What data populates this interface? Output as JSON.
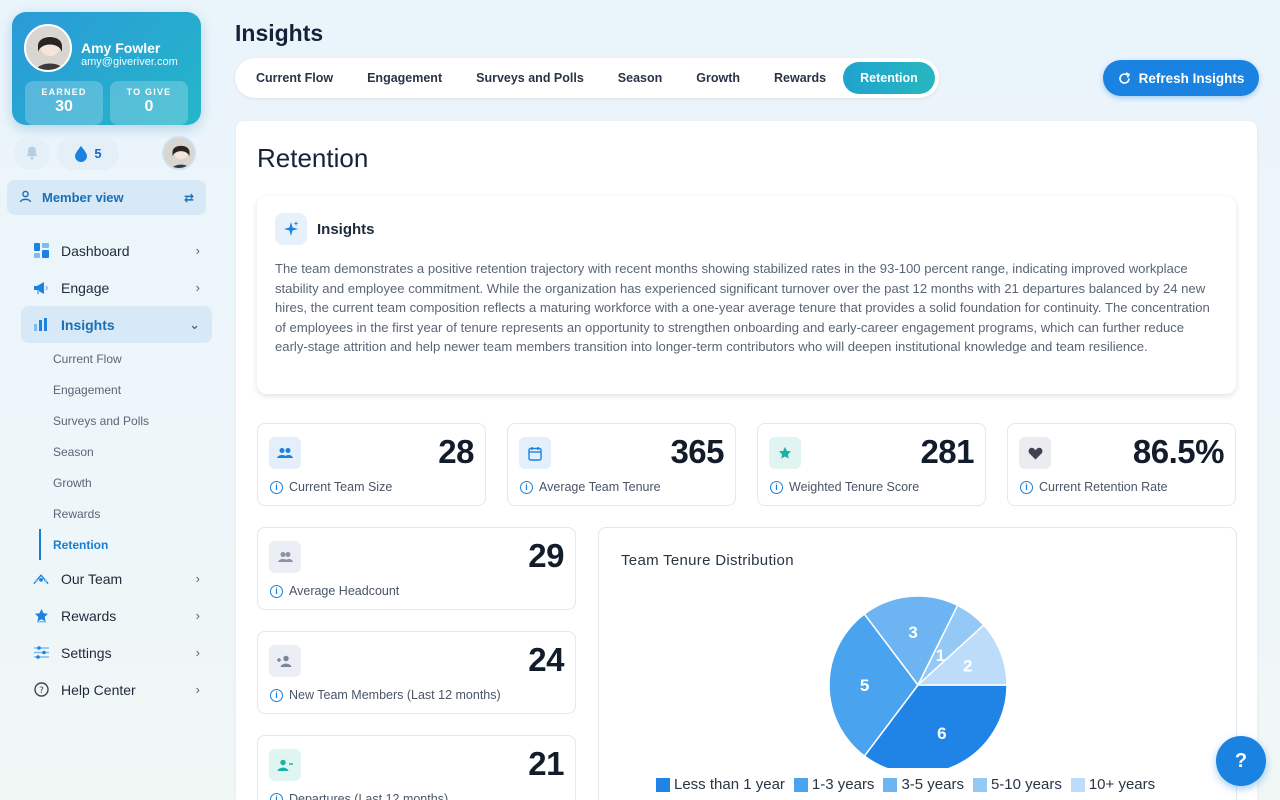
{
  "profile": {
    "name": "Amy Fowler",
    "email": "amy@giveriver.com",
    "earned_label": "EARNED",
    "earned_value": "30",
    "give_label": "TO GIVE",
    "give_value": "0"
  },
  "drops": {
    "count": "5"
  },
  "member_view": {
    "label": "Member view"
  },
  "nav": {
    "items": [
      {
        "label": "Dashboard",
        "icon": "dashboard-icon"
      },
      {
        "label": "Engage",
        "icon": "megaphone-icon"
      },
      {
        "label": "Insights",
        "icon": "bar-chart-icon"
      },
      {
        "label": "Our Team",
        "icon": "team-icon"
      },
      {
        "label": "Rewards",
        "icon": "star-icon"
      },
      {
        "label": "Settings",
        "icon": "sliders-icon"
      },
      {
        "label": "Help Center",
        "icon": "help-icon"
      }
    ],
    "insights_sub": [
      "Current Flow",
      "Engagement",
      "Surveys and Polls",
      "Season",
      "Growth",
      "Rewards",
      "Retention"
    ]
  },
  "header": {
    "title": "Insights",
    "tabs": [
      "Current Flow",
      "Engagement",
      "Surveys and Polls",
      "Season",
      "Growth",
      "Rewards",
      "Retention"
    ],
    "active_tab": "Retention",
    "refresh_label": "Refresh Insights"
  },
  "main": {
    "title": "Retention",
    "insights": {
      "title": "Insights",
      "text": "The team demonstrates a positive retention trajectory with recent months showing stabilized rates in the 93-100 percent range, indicating improved workplace stability and employee commitment. While the organization has experienced significant turnover over the past 12 months with 21 departures balanced by 24 new hires, the current team composition reflects a maturing workforce with a one-year average tenure that provides a solid foundation for continuity. The concentration of employees in the first year of tenure represents an opportunity to strengthen onboarding and early-career engagement programs, which can further reduce early-stage attrition and help newer team members transition into longer-term contributors who will deepen institutional knowledge and team resilience."
    },
    "metrics": [
      {
        "value": "28",
        "label": "Current Team Size"
      },
      {
        "value": "365",
        "label": "Average Team Tenure"
      },
      {
        "value": "281",
        "label": "Weighted Tenure Score"
      },
      {
        "value": "86.5%",
        "label": "Current Retention Rate"
      }
    ],
    "side_metrics": [
      {
        "value": "29",
        "label": "Average Headcount"
      },
      {
        "value": "24",
        "label": "New Team Members (Last 12 months)"
      },
      {
        "value": "21",
        "label": "Departures (Last 12 months)"
      }
    ]
  },
  "colors": {
    "accent": "#1a82e0",
    "teal": "#25b6c9"
  },
  "chart_data": {
    "type": "pie",
    "title": "Team Tenure Distribution",
    "categories": [
      "Less than 1 year",
      "1-3 years",
      "3-5 years",
      "5-10 years",
      "10+ years"
    ],
    "values": [
      6,
      5,
      3,
      1,
      2
    ],
    "colors": [
      "#1f84e6",
      "#4aa3ee",
      "#6db5f2",
      "#94c9f6",
      "#bcdcf9"
    ],
    "legend_placement": "bottom"
  },
  "help": {
    "label": "?"
  }
}
